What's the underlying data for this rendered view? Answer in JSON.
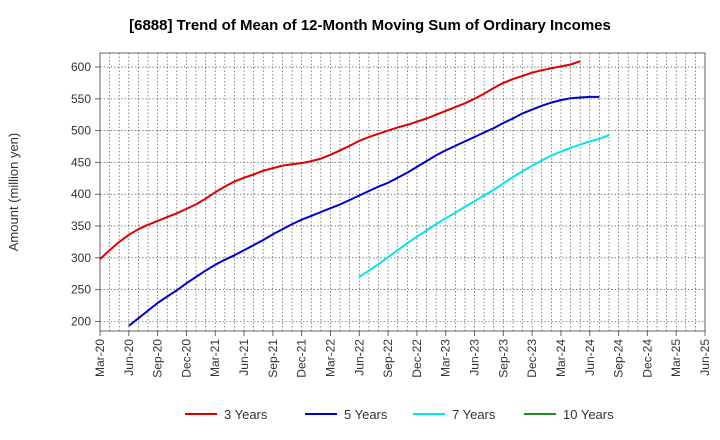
{
  "chart_data": {
    "type": "line",
    "title": "[6888]  Trend of Mean of 12-Month Moving Sum of Ordinary Incomes",
    "xlabel": "",
    "ylabel": "Amount (million yen)",
    "ylim": [
      185,
      622
    ],
    "yticks": [
      200,
      250,
      300,
      350,
      400,
      450,
      500,
      550,
      600
    ],
    "x_categories": [
      "Mar-20",
      "Jun-20",
      "Sep-20",
      "Dec-20",
      "Mar-21",
      "Jun-21",
      "Sep-21",
      "Dec-21",
      "Mar-22",
      "Jun-22",
      "Sep-22",
      "Dec-22",
      "Mar-23",
      "Jun-23",
      "Sep-23",
      "Dec-23",
      "Mar-24",
      "Jun-24",
      "Sep-24",
      "Dec-24",
      "Mar-25",
      "Jun-25"
    ],
    "grid": true,
    "legend_position": "bottom",
    "series": [
      {
        "name": "3 Years",
        "color": "#dd0000",
        "start_index": 0,
        "values": [
          298,
          312,
          325,
          336,
          345,
          352,
          358,
          364,
          370,
          377,
          384,
          393,
          403,
          412,
          420,
          426,
          431,
          437,
          441,
          445,
          447,
          449,
          452,
          456,
          462,
          469,
          476,
          484,
          490,
          495,
          500,
          505,
          509,
          514,
          519,
          525,
          531,
          537,
          543,
          550,
          558,
          567,
          575,
          581,
          586,
          591,
          595,
          598,
          601,
          604,
          609
        ]
      },
      {
        "name": "5 Years",
        "color": "#0000cc",
        "start_index": 3,
        "values": [
          193,
          205,
          217,
          229,
          239,
          249,
          260,
          270,
          280,
          289,
          297,
          304,
          312,
          320,
          328,
          337,
          345,
          353,
          360,
          366,
          372,
          378,
          384,
          391,
          398,
          405,
          412,
          418,
          426,
          434,
          443,
          452,
          461,
          469,
          476,
          483,
          490,
          497,
          504,
          512,
          519,
          527,
          533,
          539,
          544,
          548,
          551,
          552,
          553,
          553
        ]
      },
      {
        "name": "7 Years",
        "color": "#00e5ee",
        "start_index": 27,
        "values": [
          270,
          280,
          290,
          301,
          312,
          323,
          333,
          343,
          353,
          362,
          371,
          380,
          389,
          398,
          407,
          417,
          427,
          436,
          445,
          453,
          461,
          467,
          473,
          478,
          483,
          487,
          493
        ]
      },
      {
        "name": "10 Years",
        "color": "#228b22",
        "start_index": 0,
        "values": []
      }
    ]
  }
}
